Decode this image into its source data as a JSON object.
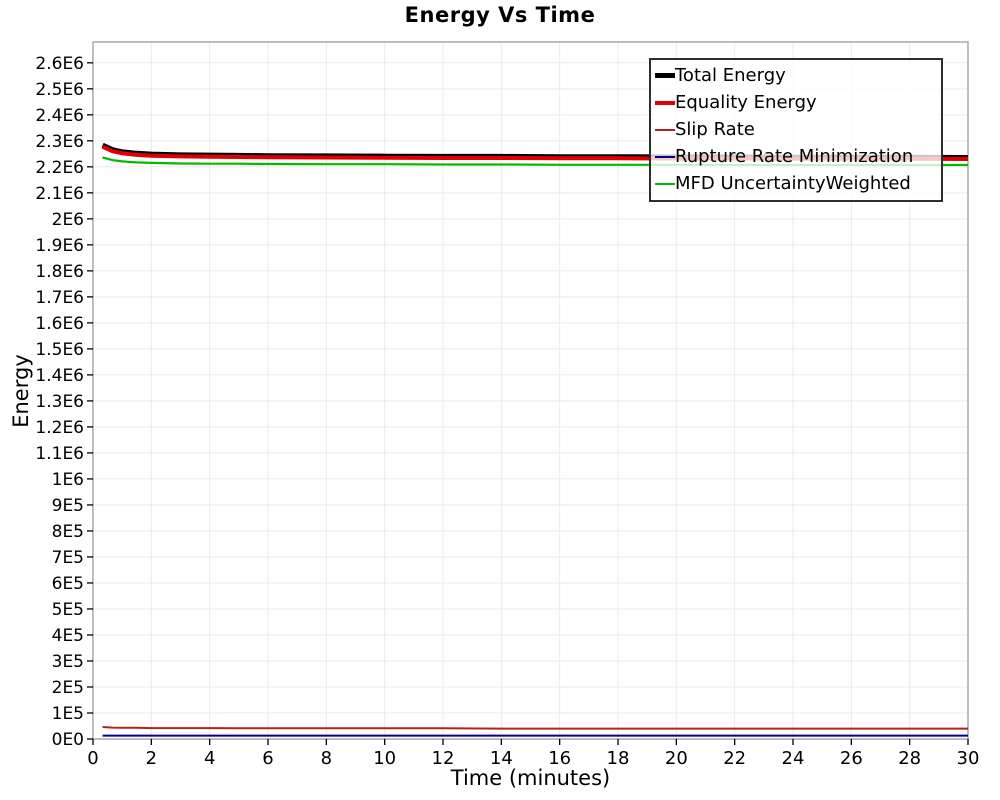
{
  "title": "Energy Vs Time",
  "axes": {
    "x_label": "Time (minutes)",
    "y_label": "Energy",
    "x_ticks": [
      {
        "v": 0,
        "label": "0"
      },
      {
        "v": 2,
        "label": "2"
      },
      {
        "v": 4,
        "label": "4"
      },
      {
        "v": 6,
        "label": "6"
      },
      {
        "v": 8,
        "label": "8"
      },
      {
        "v": 10,
        "label": "10"
      },
      {
        "v": 12,
        "label": "12"
      },
      {
        "v": 14,
        "label": "14"
      },
      {
        "v": 16,
        "label": "16"
      },
      {
        "v": 18,
        "label": "18"
      },
      {
        "v": 20,
        "label": "20"
      },
      {
        "v": 22,
        "label": "22"
      },
      {
        "v": 24,
        "label": "24"
      },
      {
        "v": 26,
        "label": "26"
      },
      {
        "v": 28,
        "label": "28"
      },
      {
        "v": 30,
        "label": "30"
      }
    ],
    "y_ticks": [
      {
        "v": 0,
        "label": "0E0"
      },
      {
        "v": 100000,
        "label": "1E5"
      },
      {
        "v": 200000,
        "label": "2E5"
      },
      {
        "v": 300000,
        "label": "3E5"
      },
      {
        "v": 400000,
        "label": "4E5"
      },
      {
        "v": 500000,
        "label": "5E5"
      },
      {
        "v": 600000,
        "label": "6E5"
      },
      {
        "v": 700000,
        "label": "7E5"
      },
      {
        "v": 800000,
        "label": "8E5"
      },
      {
        "v": 900000,
        "label": "9E5"
      },
      {
        "v": 1000000,
        "label": "1E6"
      },
      {
        "v": 1100000,
        "label": "1.1E6"
      },
      {
        "v": 1200000,
        "label": "1.2E6"
      },
      {
        "v": 1300000,
        "label": "1.3E6"
      },
      {
        "v": 1400000,
        "label": "1.4E6"
      },
      {
        "v": 1500000,
        "label": "1.5E6"
      },
      {
        "v": 1600000,
        "label": "1.6E6"
      },
      {
        "v": 1700000,
        "label": "1.7E6"
      },
      {
        "v": 1800000,
        "label": "1.8E6"
      },
      {
        "v": 1900000,
        "label": "1.9E6"
      },
      {
        "v": 2000000,
        "label": "2E6"
      },
      {
        "v": 2100000,
        "label": "2.1E6"
      },
      {
        "v": 2200000,
        "label": "2.2E6"
      },
      {
        "v": 2300000,
        "label": "2.3E6"
      },
      {
        "v": 2400000,
        "label": "2.4E6"
      },
      {
        "v": 2500000,
        "label": "2.5E6"
      },
      {
        "v": 2600000,
        "label": "2.6E6"
      }
    ]
  },
  "chart_data": {
    "type": "line",
    "title": "Energy Vs Time",
    "xlabel": "Time (minutes)",
    "ylabel": "Energy",
    "xlim": [
      0,
      30
    ],
    "ylim": [
      0,
      2680000
    ],
    "grid": true,
    "legend_position": "top-right",
    "x": [
      0.33,
      0.67,
      1,
      1.5,
      2,
      3,
      4,
      5,
      6,
      8,
      10,
      12,
      14,
      16,
      18,
      20,
      22,
      24,
      26,
      28,
      30
    ],
    "series": [
      {
        "name": "Total Energy",
        "color": "#000000",
        "line_width": 5,
        "values": [
          2283000,
          2266000,
          2258000,
          2252000,
          2249000,
          2246000,
          2245000,
          2244000,
          2243000,
          2242000,
          2241000,
          2240000,
          2240000,
          2239000,
          2239000,
          2238000,
          2238000,
          2237000,
          2237000,
          2237000,
          2236000
        ]
      },
      {
        "name": "Equality Energy",
        "color": "#e10000",
        "line_width": 4,
        "values": [
          2277000,
          2260000,
          2252000,
          2246000,
          2243000,
          2240000,
          2239000,
          2238000,
          2237000,
          2236000,
          2235000,
          2234000,
          2234000,
          2233000,
          2233000,
          2232000,
          2232000,
          2231000,
          2231000,
          2231000,
          2230000
        ]
      },
      {
        "name": "Slip Rate",
        "color": "#b22222",
        "line_width": 2,
        "values": [
          46000,
          44000,
          43000,
          43000,
          42000,
          42000,
          42000,
          41000,
          41000,
          41000,
          41000,
          41000,
          40000,
          40000,
          40000,
          40000,
          40000,
          40000,
          40000,
          40000,
          40000
        ]
      },
      {
        "name": "Rupture Rate Minimization",
        "color": "#00008b",
        "line_width": 2,
        "values": [
          13000,
          13000,
          13000,
          13000,
          13000,
          13000,
          13000,
          13000,
          13000,
          13000,
          13000,
          13000,
          13000,
          13000,
          13000,
          13000,
          13000,
          13000,
          13000,
          13000,
          13000
        ]
      },
      {
        "name": "MFD UncertaintyWeighted",
        "color": "#00bb00",
        "line_width": 2.2,
        "values": [
          2236000,
          2226000,
          2221000,
          2217000,
          2215000,
          2213000,
          2212000,
          2212000,
          2211000,
          2210000,
          2210000,
          2209000,
          2209000,
          2208000,
          2208000,
          2208000,
          2207000,
          2207000,
          2207000,
          2207000,
          2207000
        ]
      }
    ]
  },
  "style": {
    "grid_color": "#ebebeb",
    "frame_color": "#a8a8a8",
    "tick_color": "#000000"
  }
}
